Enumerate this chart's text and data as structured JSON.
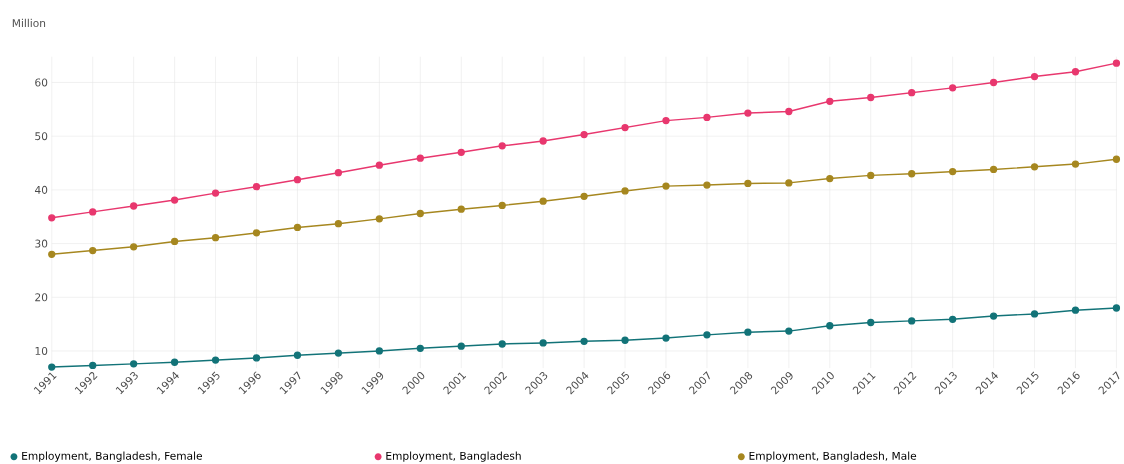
{
  "chart_data": {
    "type": "line",
    "ylabel": "Million",
    "categories": [
      "1991",
      "1992",
      "1993",
      "1994",
      "1995",
      "1996",
      "1997",
      "1998",
      "1999",
      "2000",
      "2001",
      "2002",
      "2003",
      "2004",
      "2005",
      "2006",
      "2007",
      "2008",
      "2009",
      "2010",
      "2011",
      "2012",
      "2013",
      "2014",
      "2015",
      "2016",
      "2017"
    ],
    "series": [
      {
        "name": "Employment, Bangladesh, Female",
        "color": "#127378",
        "values": [
          7.0,
          7.3,
          7.6,
          7.9,
          8.3,
          8.7,
          9.2,
          9.6,
          10.0,
          10.5,
          10.9,
          11.3,
          11.5,
          11.8,
          12.0,
          12.4,
          13.0,
          13.5,
          13.7,
          14.7,
          15.3,
          15.6,
          15.9,
          16.5,
          16.9,
          17.6,
          18.0
        ]
      },
      {
        "name": "Employment, Bangladesh",
        "color": "#e8376e",
        "values": [
          34.8,
          35.9,
          37.0,
          38.1,
          39.4,
          40.6,
          41.9,
          43.2,
          44.6,
          45.9,
          47.0,
          48.2,
          49.1,
          50.3,
          51.6,
          52.9,
          53.5,
          54.3,
          54.6,
          56.5,
          57.2,
          58.1,
          59.0,
          60.0,
          61.1,
          62.0,
          63.6
        ]
      },
      {
        "name": "Employment, Bangladesh, Male",
        "color": "#a6871f",
        "values": [
          28.0,
          28.7,
          29.4,
          30.4,
          31.1,
          32.0,
          33.0,
          33.7,
          34.6,
          35.6,
          36.4,
          37.1,
          37.9,
          38.8,
          39.8,
          40.7,
          40.9,
          41.2,
          41.3,
          42.1,
          42.7,
          43.0,
          43.4,
          43.8,
          44.3,
          44.8,
          45.7
        ]
      }
    ],
    "ylim": [
      6.8,
      64.8
    ],
    "yticks": [
      10,
      20,
      30,
      40,
      50,
      60
    ],
    "grid": true,
    "legend": "bottom",
    "marker": "circle",
    "line_style": "solid"
  }
}
